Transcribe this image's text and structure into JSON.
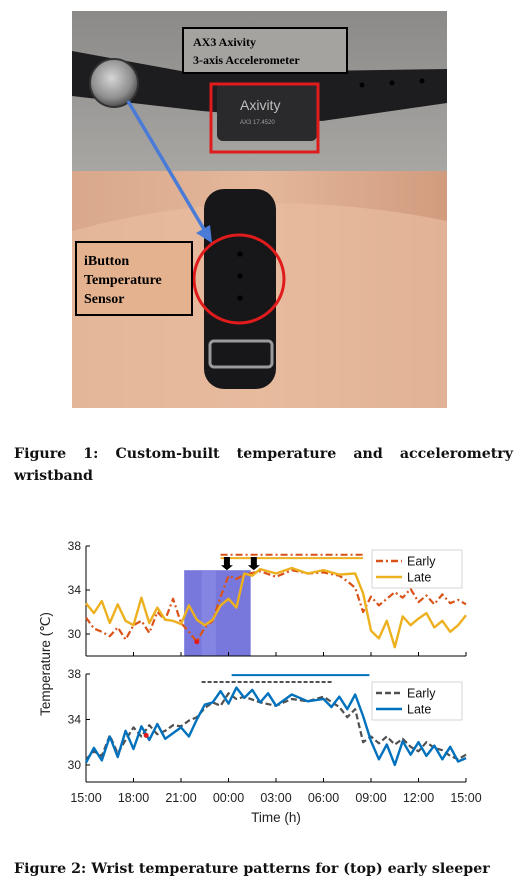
{
  "figure1": {
    "caption_prefix": "Figure 1:",
    "caption_text": "Custom-built temperature and accelerometry wristband",
    "photo": {
      "device_brand": "Axivity",
      "device_model": "AX3 17.4520",
      "label_accelerometer_line1": "AX3 Axivity",
      "label_accelerometer_line2": "3-axis Accelerometer",
      "label_sensor_line1": "iButton",
      "label_sensor_line2": "Temperature",
      "label_sensor_line3": "Sensor"
    }
  },
  "figure2": {
    "caption_prefix": "Figure 2:",
    "caption_text": "Wrist temperature patterns for (top) early sleeper",
    "colors": {
      "early_top": "#d95319",
      "late_top": "#edb120",
      "early_bottom": "#505050",
      "late_bottom": "#0072bd",
      "highlight": "#4a4ad0"
    }
  },
  "chart_data": {
    "type": "line",
    "xlabel": "Time (h)",
    "ylabel": "Temperature (℃)",
    "x_tick_labels": [
      "15:00",
      "18:00",
      "21:00",
      "00:00",
      "03:00",
      "06:00",
      "09:00",
      "12:00",
      "15:00"
    ],
    "x_range_hours": [
      0,
      24
    ],
    "panels": [
      {
        "name": "top",
        "ylim": [
          28,
          38
        ],
        "y_ticks": [
          30,
          34,
          38
        ],
        "legend_placement": "top-right",
        "series": [
          {
            "name": "Early",
            "style": "dash-dot",
            "x": [
              0,
              0.5,
              1,
              1.5,
              2,
              2.5,
              3,
              3.5,
              4,
              4.5,
              5,
              5.5,
              6,
              6.5,
              7,
              7.5,
              8,
              8.5,
              9,
              9.5,
              10,
              11,
              12,
              13,
              14,
              15,
              16,
              16.5,
              17,
              17.5,
              18,
              18.5,
              19,
              19.5,
              20,
              20.5,
              21,
              21.5,
              22,
              22.5,
              23,
              23.5,
              24
            ],
            "y": [
              31.5,
              30.5,
              30.2,
              29.8,
              30.6,
              29.5,
              30.8,
              31.2,
              30.1,
              32.0,
              31.3,
              33.2,
              31.0,
              30.2,
              29.3,
              30.6,
              31.2,
              33.4,
              35.3,
              35.0,
              35.4,
              35.7,
              35.2,
              35.8,
              35.5,
              35.6,
              35.3,
              34.8,
              34.2,
              32.0,
              33.4,
              32.6,
              33.2,
              33.8,
              33.3,
              34.1,
              32.9,
              33.5,
              32.7,
              33.6,
              32.8,
              33.1,
              32.7
            ]
          },
          {
            "name": "Late",
            "style": "solid",
            "x": [
              0,
              0.5,
              1,
              1.5,
              2,
              2.5,
              3,
              3.5,
              4,
              4.5,
              5,
              5.5,
              6,
              6.5,
              7,
              7.5,
              8,
              8.5,
              9,
              9.5,
              10,
              10.5,
              11,
              12,
              13,
              14,
              15,
              16,
              17,
              17.5,
              18,
              18.5,
              19,
              19.5,
              20,
              20.5,
              21,
              21.5,
              22,
              22.5,
              23,
              23.5,
              24
            ],
            "y": [
              32.8,
              31.9,
              33.0,
              31.0,
              32.7,
              31.2,
              30.8,
              33.3,
              31.0,
              32.4,
              31.3,
              31.2,
              30.9,
              32.6,
              31.3,
              30.8,
              31.3,
              32.6,
              33.2,
              32.4,
              35.5,
              35.3,
              35.9,
              35.5,
              36.0,
              35.5,
              35.8,
              35.4,
              35.5,
              33.7,
              30.3,
              29.6,
              31.2,
              28.8,
              31.6,
              30.8,
              31.4,
              31.9,
              30.6,
              31.2,
              30.2,
              30.8,
              31.7
            ]
          }
        ]
      },
      {
        "name": "bottom",
        "ylim": [
          28.5,
          38
        ],
        "y_ticks": [
          30,
          34,
          38
        ],
        "legend_placement": "top-right",
        "series": [
          {
            "name": "Early",
            "style": "dashed",
            "x": [
              0,
              0.5,
              1,
              1.5,
              2,
              2.5,
              3,
              3.5,
              4,
              4.5,
              5,
              5.5,
              6,
              6.5,
              7,
              7.5,
              8,
              8.5,
              9,
              9.5,
              10,
              11,
              12,
              13,
              14,
              15,
              16,
              16.5,
              17,
              17.5,
              18,
              18.5,
              19,
              19.5,
              20,
              20.5,
              21,
              21.5,
              22,
              22.5,
              23,
              23.5,
              24
            ],
            "y": [
              30.5,
              31.2,
              30.8,
              32.6,
              31.0,
              32.2,
              33.3,
              32.5,
              33.5,
              32.7,
              33.0,
              33.5,
              33.4,
              33.9,
              34.2,
              35.0,
              35.5,
              35.2,
              36.3,
              35.8,
              36.0,
              35.5,
              35.2,
              35.8,
              35.6,
              36.0,
              35.1,
              34.2,
              34.9,
              32.0,
              32.5,
              31.9,
              32.5,
              31.8,
              32.3,
              31.6,
              31.2,
              32.0,
              31.5,
              31.3,
              30.8,
              30.5,
              30.9
            ]
          },
          {
            "name": "Late",
            "style": "solid",
            "x": [
              0,
              0.5,
              1,
              1.5,
              2,
              2.5,
              3,
              3.5,
              4,
              4.5,
              5,
              5.5,
              6,
              6.5,
              7,
              7.5,
              8,
              8.5,
              9,
              9.5,
              10,
              10.5,
              11,
              11.5,
              12,
              13,
              14,
              15,
              15.5,
              16,
              16.5,
              17,
              17.5,
              18,
              18.5,
              19,
              19.5,
              20,
              20.5,
              21,
              21.5,
              22,
              22.5,
              23,
              23.5,
              24
            ],
            "y": [
              30.2,
              31.5,
              30.4,
              32.5,
              30.7,
              33.0,
              31.4,
              33.4,
              32.2,
              33.6,
              32.3,
              32.8,
              33.3,
              32.5,
              34.0,
              35.3,
              35.5,
              36.5,
              35.4,
              36.8,
              35.9,
              36.6,
              35.5,
              36.3,
              35.2,
              36.2,
              35.6,
              35.8,
              35.1,
              36.0,
              34.9,
              36.2,
              34.3,
              32.1,
              30.5,
              31.8,
              30.0,
              32.1,
              30.9,
              32.0,
              30.8,
              31.7,
              30.5,
              31.6,
              30.3,
              30.6
            ]
          }
        ]
      }
    ],
    "annotations": [
      {
        "panel": "top",
        "type": "shaded-region",
        "x_start": 6.2,
        "x_end": 10.4
      },
      {
        "panel": "top",
        "type": "arrow",
        "x": 8.9
      },
      {
        "panel": "top",
        "type": "arrow",
        "x": 10.6
      },
      {
        "panel": "top",
        "type": "bar",
        "series": "Early",
        "x_start": 8.5,
        "x_end": 17.5
      },
      {
        "panel": "top",
        "type": "bar",
        "series": "Late",
        "x_start": 8.5,
        "x_end": 17.5
      },
      {
        "panel": "bottom",
        "type": "bar",
        "series": "Early",
        "x_start": 7.3,
        "x_end": 15.6
      },
      {
        "panel": "bottom",
        "type": "bar",
        "series": "Late",
        "x_start": 9.2,
        "x_end": 17.9
      }
    ]
  }
}
